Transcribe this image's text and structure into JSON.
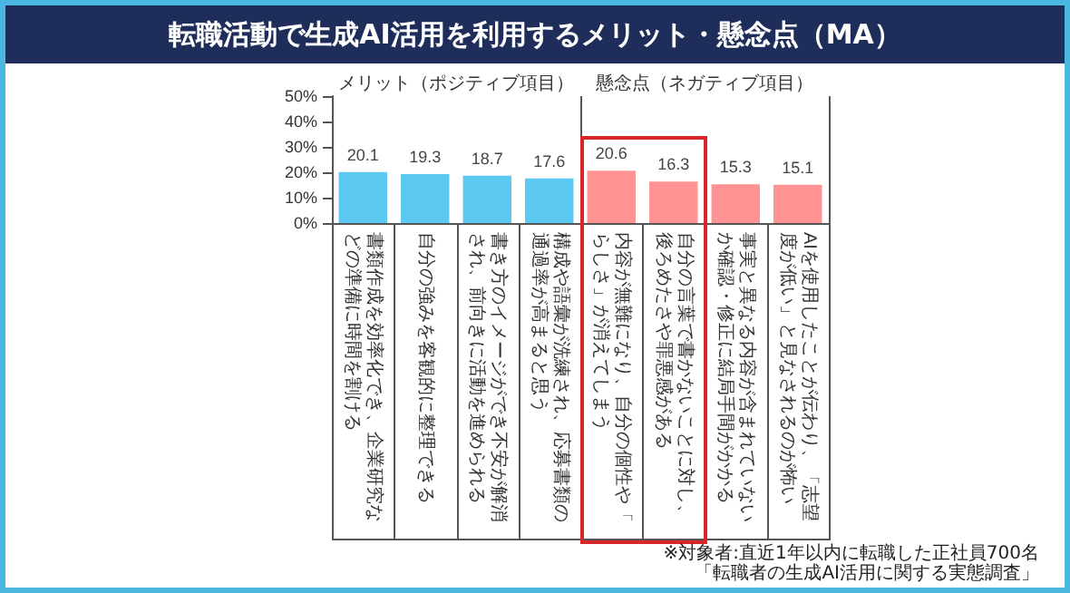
{
  "chart_data": {
    "type": "bar",
    "title": "転職活動で生成AI活用を利用するメリット・懸念点（MA）",
    "categories": [
      "書類作成を効率化でき、企業研究などの準備に時間を割ける",
      "自分の強みを客観的に整理できる",
      "書き方のイメージができ不安が解消され、前向きに活動を進められる",
      "構成や語彙が洗練され、応募書類の通過率が高まると思う",
      "内容が無難になり、自分の個性や「らしさ」が消えてしまう",
      "自分の言葉で書かないことに対し、後ろめたさや罪悪感がある",
      "事実と異なる内容が含まれていないか確認・修正に結局手間がかかる",
      "AIを使用したことが伝わり、「志望度が低い」と見なされるのが怖い"
    ],
    "values": [
      20.1,
      19.3,
      18.7,
      17.6,
      20.6,
      16.3,
      15.3,
      15.1
    ],
    "colors": [
      "#5bc9f1",
      "#5bc9f1",
      "#5bc9f1",
      "#5bc9f1",
      "#ff9393",
      "#ff9393",
      "#ff9393",
      "#ff9393"
    ],
    "ylim": [
      0,
      50
    ],
    "yticks": [
      {
        "value": 0,
        "label": "0%"
      },
      {
        "value": 10,
        "label": "10%"
      },
      {
        "value": 20,
        "label": "20%"
      },
      {
        "value": 30,
        "label": "30%"
      },
      {
        "value": 40,
        "label": "40%"
      },
      {
        "value": 50,
        "label": "50%"
      }
    ],
    "data_labels": true,
    "grid": false,
    "annotations": [
      "メリット（ポジティブ項目）",
      "懸念点（ネガティブ項目）",
      "※対象者:直近1年以内に転職した正社員700名",
      "「転職者の生成AI活用に関する実態調査」"
    ]
  }
}
